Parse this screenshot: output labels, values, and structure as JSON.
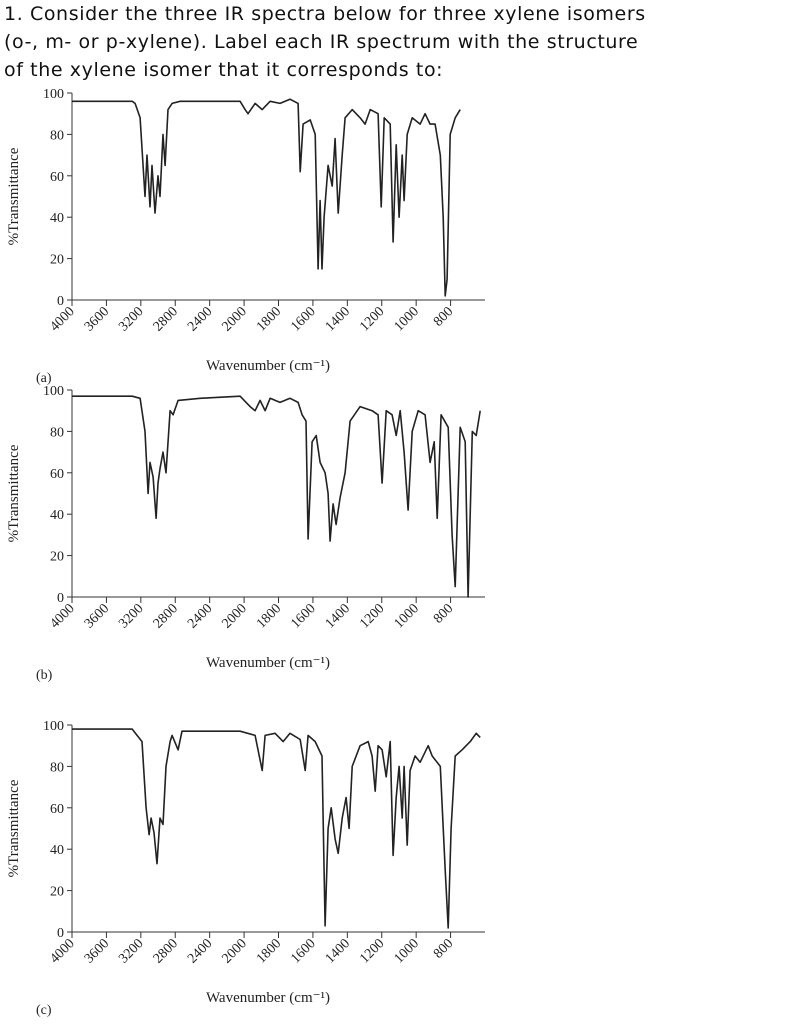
{
  "question": [
    "1. Consider the three IR spectra below for three xylene isomers",
    "(o-, m- or p-xylene). Label each IR spectrum with the structure",
    "of the xylene isomer that it corresponds to:"
  ],
  "chart_data": [
    {
      "type": "line",
      "label": "(a)",
      "xlabel": "Wavenumber (cm⁻¹)",
      "ylabel": "%Transmittance",
      "color": "#222222",
      "xlim": [
        4000,
        600
      ],
      "x_expansion": {
        "below": 2000,
        "factor": 2
      },
      "xticks": [
        4000,
        3600,
        3200,
        2800,
        2400,
        2000,
        1800,
        1600,
        1400,
        1200,
        1000,
        800
      ],
      "ylim": [
        0,
        100
      ],
      "yticks": [
        0,
        20,
        40,
        60,
        80,
        100
      ],
      "x": [
        4000,
        3300,
        3267,
        3209,
        3151,
        3128,
        3093,
        3070,
        3035,
        3000,
        2977,
        2942,
        2918,
        2884,
        2837,
        2744,
        2511,
        2046,
        1994,
        1977,
        1936,
        1895,
        1849,
        1791,
        1733,
        1686,
        1674,
        1657,
        1616,
        1587,
        1570,
        1558,
        1547,
        1535,
        1512,
        1488,
        1471,
        1453,
        1430,
        1413,
        1372,
        1326,
        1297,
        1267,
        1221,
        1203,
        1186,
        1151,
        1134,
        1116,
        1099,
        1081,
        1070,
        1052,
        1023,
        977,
        948,
        919,
        890,
        860,
        843,
        831,
        820,
        802,
        773,
        744
      ],
      "values": [
        96,
        96,
        95,
        88,
        50,
        70,
        45,
        65,
        42,
        60,
        50,
        80,
        65,
        92,
        95,
        96,
        96,
        96,
        92,
        90,
        95,
        92,
        96,
        95,
        97,
        95,
        62,
        85,
        87,
        80,
        15,
        48,
        15,
        40,
        65,
        55,
        78,
        42,
        70,
        88,
        92,
        88,
        85,
        92,
        90,
        45,
        88,
        85,
        28,
        75,
        40,
        70,
        48,
        80,
        88,
        85,
        90,
        85,
        85,
        70,
        40,
        2,
        10,
        80,
        88,
        92
      ]
    },
    {
      "type": "line",
      "label": "(b)",
      "xlabel": "Wavenumber (cm⁻¹)",
      "ylabel": "%Transmittance",
      "color": "#222222",
      "xlim": [
        4000,
        600
      ],
      "x_expansion": {
        "below": 2000,
        "factor": 2
      },
      "xticks": [
        4000,
        3600,
        3200,
        2800,
        2400,
        2000,
        1800,
        1600,
        1400,
        1200,
        1000,
        800
      ],
      "ylim": [
        0,
        100
      ],
      "yticks": [
        0,
        20,
        40,
        60,
        80,
        100
      ],
      "x": [
        4000,
        3300,
        3209,
        3151,
        3116,
        3093,
        3058,
        3023,
        3000,
        2977,
        2942,
        2907,
        2860,
        2825,
        2767,
        2511,
        2046,
        1965,
        1936,
        1907,
        1878,
        1849,
        1791,
        1733,
        1686,
        1663,
        1640,
        1628,
        1605,
        1581,
        1558,
        1529,
        1512,
        1500,
        1483,
        1465,
        1442,
        1413,
        1384,
        1326,
        1256,
        1221,
        1198,
        1174,
        1140,
        1116,
        1093,
        1070,
        1047,
        1023,
        988,
        948,
        919,
        895,
        878,
        855,
        814,
        791,
        773,
        744,
        715,
        698,
        674,
        651,
        628
      ],
      "values": [
        97,
        97,
        96,
        80,
        50,
        65,
        58,
        38,
        55,
        62,
        70,
        60,
        90,
        88,
        95,
        96,
        97,
        92,
        90,
        95,
        90,
        96,
        94,
        96,
        94,
        88,
        85,
        28,
        75,
        78,
        65,
        60,
        50,
        27,
        45,
        35,
        48,
        60,
        85,
        92,
        90,
        88,
        55,
        90,
        88,
        78,
        90,
        70,
        42,
        80,
        90,
        88,
        65,
        75,
        38,
        88,
        82,
        30,
        5,
        82,
        75,
        0,
        80,
        78,
        90
      ]
    },
    {
      "type": "line",
      "label": "(c)",
      "xlabel": "Wavenumber (cm⁻¹)",
      "ylabel": "%Transmittance",
      "color": "#222222",
      "xlim": [
        4000,
        600
      ],
      "x_expansion": {
        "below": 2000,
        "factor": 2
      },
      "xticks": [
        4000,
        3600,
        3200,
        2800,
        2400,
        2000,
        1800,
        1600,
        1400,
        1200,
        1000,
        800
      ],
      "ylim": [
        0,
        100
      ],
      "yticks": [
        0,
        20,
        40,
        60,
        80,
        100
      ],
      "x": [
        4000,
        3300,
        3186,
        3139,
        3104,
        3081,
        3047,
        3012,
        2977,
        2942,
        2907,
        2860,
        2837,
        2767,
        2721,
        2511,
        2046,
        1936,
        1895,
        1878,
        1820,
        1773,
        1733,
        1674,
        1645,
        1628,
        1587,
        1547,
        1529,
        1512,
        1494,
        1471,
        1453,
        1430,
        1407,
        1390,
        1372,
        1326,
        1279,
        1256,
        1238,
        1221,
        1198,
        1174,
        1151,
        1134,
        1116,
        1099,
        1081,
        1070,
        1052,
        1035,
        1006,
        977,
        930,
        907,
        860,
        831,
        814,
        797,
        773,
        733,
        686,
        651,
        628
      ],
      "values": [
        98,
        98,
        92,
        60,
        47,
        55,
        48,
        33,
        55,
        52,
        80,
        92,
        95,
        88,
        97,
        97,
        97,
        95,
        78,
        95,
        96,
        92,
        96,
        93,
        78,
        95,
        92,
        85,
        3,
        50,
        60,
        45,
        38,
        55,
        65,
        50,
        80,
        90,
        92,
        85,
        68,
        90,
        88,
        75,
        92,
        37,
        65,
        80,
        55,
        80,
        42,
        78,
        85,
        82,
        90,
        85,
        80,
        30,
        2,
        50,
        85,
        88,
        92,
        96,
        94
      ]
    }
  ]
}
